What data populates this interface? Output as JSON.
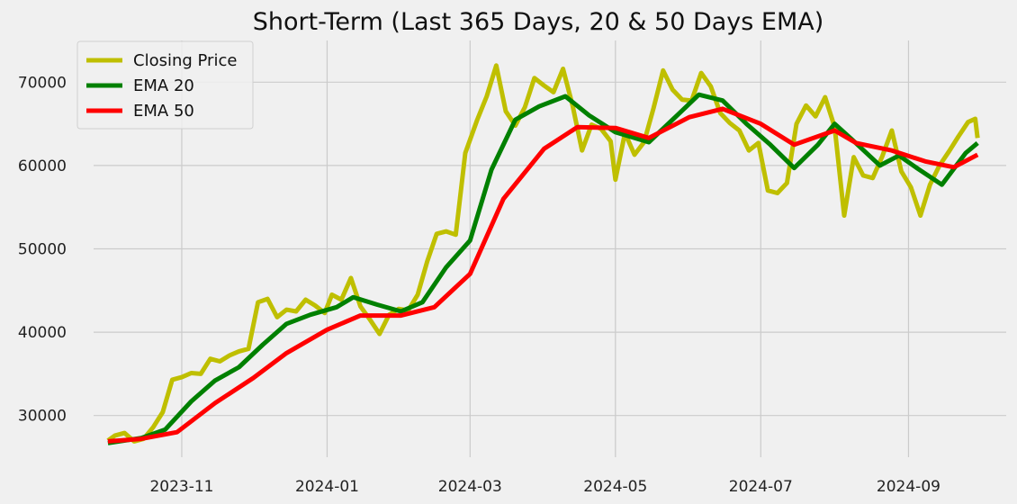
{
  "chart_data": {
    "type": "line",
    "title": "Short-Term (Last 365 Days, 20 & 50 Days EMA)",
    "xlabel": "",
    "ylabel": "",
    "grid": true,
    "legend_position": "top-left",
    "xlim": [
      "2023-09-25",
      "2024-10-12"
    ],
    "ylim": [
      25000,
      75000
    ],
    "x_ticks": [
      "2023-11",
      "2024-01",
      "2024-03",
      "2024-05",
      "2024-07",
      "2024-09"
    ],
    "y_ticks": [
      30000,
      40000,
      50000,
      60000,
      70000
    ],
    "series": [
      {
        "name": "Closing Price",
        "color": "#bfbf00",
        "points": [
          [
            "2023-10-01",
            27000
          ],
          [
            "2023-10-04",
            27600
          ],
          [
            "2023-10-08",
            27900
          ],
          [
            "2023-10-12",
            26900
          ],
          [
            "2023-10-16",
            27200
          ],
          [
            "2023-10-20",
            28600
          ],
          [
            "2023-10-24",
            30400
          ],
          [
            "2023-10-28",
            34300
          ],
          [
            "2023-11-01",
            34600
          ],
          [
            "2023-11-05",
            35100
          ],
          [
            "2023-11-09",
            35000
          ],
          [
            "2023-11-13",
            36800
          ],
          [
            "2023-11-17",
            36500
          ],
          [
            "2023-11-21",
            37200
          ],
          [
            "2023-11-25",
            37700
          ],
          [
            "2023-11-29",
            38000
          ],
          [
            "2023-12-03",
            43600
          ],
          [
            "2023-12-07",
            44000
          ],
          [
            "2023-12-11",
            41800
          ],
          [
            "2023-12-15",
            42700
          ],
          [
            "2023-12-19",
            42500
          ],
          [
            "2023-12-23",
            43900
          ],
          [
            "2023-12-27",
            43200
          ],
          [
            "2023-12-31",
            42300
          ],
          [
            "2024-01-03",
            44500
          ],
          [
            "2024-01-07",
            43900
          ],
          [
            "2024-01-11",
            46500
          ],
          [
            "2024-01-15",
            43100
          ],
          [
            "2024-01-19",
            41500
          ],
          [
            "2024-01-23",
            39800
          ],
          [
            "2024-01-27",
            42100
          ],
          [
            "2024-01-31",
            42800
          ],
          [
            "2024-02-04",
            42600
          ],
          [
            "2024-02-08",
            44500
          ],
          [
            "2024-02-12",
            48500
          ],
          [
            "2024-02-16",
            51800
          ],
          [
            "2024-02-20",
            52100
          ],
          [
            "2024-02-24",
            51700
          ],
          [
            "2024-02-28",
            61500
          ],
          [
            "2024-03-04",
            65500
          ],
          [
            "2024-03-08",
            68300
          ],
          [
            "2024-03-12",
            72000
          ],
          [
            "2024-03-16",
            66500
          ],
          [
            "2024-03-20",
            64800
          ],
          [
            "2024-03-24",
            67000
          ],
          [
            "2024-03-28",
            70500
          ],
          [
            "2024-04-01",
            69600
          ],
          [
            "2024-04-05",
            68800
          ],
          [
            "2024-04-09",
            71600
          ],
          [
            "2024-04-13",
            67200
          ],
          [
            "2024-04-17",
            61800
          ],
          [
            "2024-04-21",
            64900
          ],
          [
            "2024-04-25",
            64400
          ],
          [
            "2024-04-29",
            62900
          ],
          [
            "2024-05-01",
            58300
          ],
          [
            "2024-05-05",
            63900
          ],
          [
            "2024-05-09",
            61300
          ],
          [
            "2024-05-13",
            62800
          ],
          [
            "2024-05-17",
            66900
          ],
          [
            "2024-05-21",
            71400
          ],
          [
            "2024-05-25",
            69100
          ],
          [
            "2024-05-29",
            67900
          ],
          [
            "2024-06-02",
            67800
          ],
          [
            "2024-06-06",
            71100
          ],
          [
            "2024-06-10",
            69500
          ],
          [
            "2024-06-14",
            66300
          ],
          [
            "2024-06-18",
            65100
          ],
          [
            "2024-06-22",
            64200
          ],
          [
            "2024-06-26",
            61800
          ],
          [
            "2024-06-30",
            62700
          ],
          [
            "2024-07-04",
            57000
          ],
          [
            "2024-07-08",
            56700
          ],
          [
            "2024-07-12",
            57900
          ],
          [
            "2024-07-16",
            65000
          ],
          [
            "2024-07-20",
            67200
          ],
          [
            "2024-07-24",
            65900
          ],
          [
            "2024-07-28",
            68200
          ],
          [
            "2024-08-01",
            64600
          ],
          [
            "2024-08-05",
            54000
          ],
          [
            "2024-08-09",
            61000
          ],
          [
            "2024-08-13",
            58800
          ],
          [
            "2024-08-17",
            58500
          ],
          [
            "2024-08-21",
            61100
          ],
          [
            "2024-08-25",
            64200
          ],
          [
            "2024-08-29",
            59300
          ],
          [
            "2024-09-02",
            57400
          ],
          [
            "2024-09-06",
            54000
          ],
          [
            "2024-09-10",
            57700
          ],
          [
            "2024-09-14",
            60000
          ],
          [
            "2024-09-18",
            61700
          ],
          [
            "2024-09-22",
            63500
          ],
          [
            "2024-09-26",
            65200
          ],
          [
            "2024-09-29",
            65600
          ],
          [
            "2024-09-30",
            63300
          ]
        ]
      },
      {
        "name": "EMA 20",
        "color": "#008000",
        "points": [
          [
            "2023-10-01",
            26700
          ],
          [
            "2023-10-15",
            27300
          ],
          [
            "2023-10-25",
            28300
          ],
          [
            "2023-11-05",
            31700
          ],
          [
            "2023-11-15",
            34200
          ],
          [
            "2023-11-25",
            35800
          ],
          [
            "2023-12-05",
            38500
          ],
          [
            "2023-12-15",
            41000
          ],
          [
            "2023-12-25",
            42100
          ],
          [
            "2024-01-05",
            43000
          ],
          [
            "2024-01-12",
            44200
          ],
          [
            "2024-01-22",
            43300
          ],
          [
            "2024-02-01",
            42500
          ],
          [
            "2024-02-10",
            43600
          ],
          [
            "2024-02-20",
            47800
          ],
          [
            "2024-03-01",
            51000
          ],
          [
            "2024-03-10",
            59500
          ],
          [
            "2024-03-20",
            65500
          ],
          [
            "2024-03-30",
            67100
          ],
          [
            "2024-04-10",
            68300
          ],
          [
            "2024-04-20",
            66000
          ],
          [
            "2024-05-01",
            64000
          ],
          [
            "2024-05-15",
            62800
          ],
          [
            "2024-05-25",
            65500
          ],
          [
            "2024-06-05",
            68500
          ],
          [
            "2024-06-15",
            67800
          ],
          [
            "2024-06-25",
            65000
          ],
          [
            "2024-07-05",
            62500
          ],
          [
            "2024-07-15",
            59700
          ],
          [
            "2024-07-25",
            62500
          ],
          [
            "2024-08-01",
            65000
          ],
          [
            "2024-08-08",
            63200
          ],
          [
            "2024-08-20",
            60000
          ],
          [
            "2024-08-28",
            61200
          ],
          [
            "2024-09-05",
            59600
          ],
          [
            "2024-09-15",
            57700
          ],
          [
            "2024-09-25",
            61500
          ],
          [
            "2024-09-30",
            62700
          ]
        ]
      },
      {
        "name": "EMA 50",
        "color": "#ff0000",
        "points": [
          [
            "2023-10-01",
            26900
          ],
          [
            "2023-10-15",
            27200
          ],
          [
            "2023-10-30",
            28000
          ],
          [
            "2023-11-15",
            31500
          ],
          [
            "2023-12-01",
            34500
          ],
          [
            "2023-12-15",
            37500
          ],
          [
            "2024-01-01",
            40300
          ],
          [
            "2024-01-15",
            42000
          ],
          [
            "2024-02-01",
            42000
          ],
          [
            "2024-02-15",
            43000
          ],
          [
            "2024-03-01",
            47000
          ],
          [
            "2024-03-15",
            56000
          ],
          [
            "2024-04-01",
            62000
          ],
          [
            "2024-04-15",
            64600
          ],
          [
            "2024-05-01",
            64500
          ],
          [
            "2024-05-15",
            63300
          ],
          [
            "2024-06-01",
            65800
          ],
          [
            "2024-06-15",
            66800
          ],
          [
            "2024-07-01",
            65000
          ],
          [
            "2024-07-15",
            62500
          ],
          [
            "2024-08-01",
            64200
          ],
          [
            "2024-08-10",
            62700
          ],
          [
            "2024-08-25",
            61800
          ],
          [
            "2024-09-08",
            60500
          ],
          [
            "2024-09-20",
            59800
          ],
          [
            "2024-09-30",
            61300
          ]
        ]
      }
    ]
  }
}
